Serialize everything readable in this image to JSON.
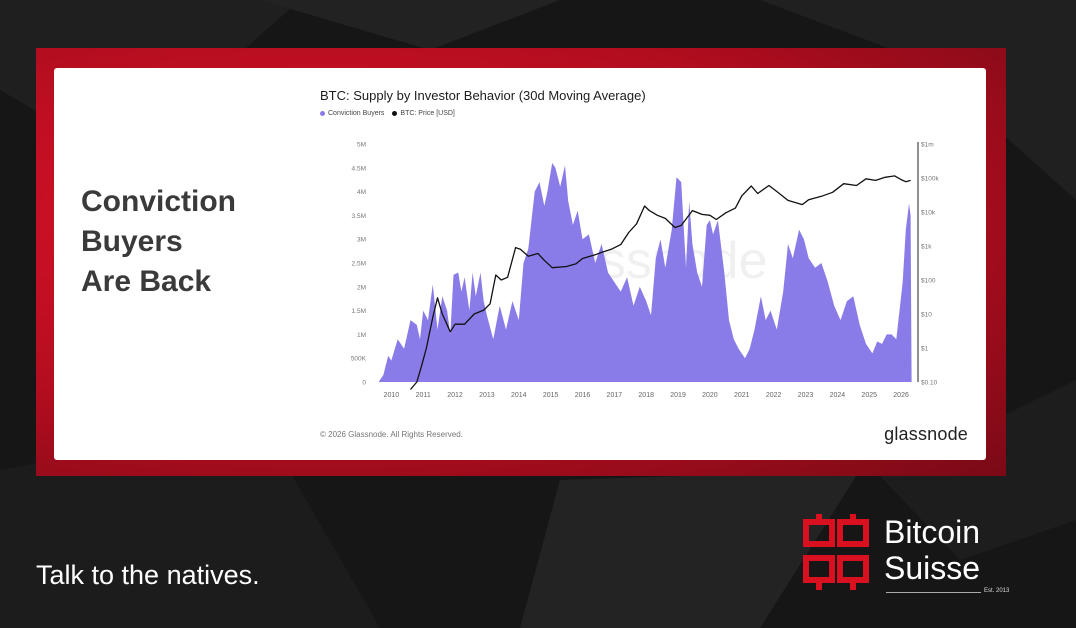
{
  "headline": [
    "Conviction",
    "Buyers",
    "Are Back"
  ],
  "tagline": "Talk to the natives.",
  "logo": {
    "line1": "Bitcoin",
    "line2": "Suisse",
    "est": "Est. 2013",
    "icon": "bitcoin-suisse-b-icon"
  },
  "colors": {
    "accent_red": "#d9101f",
    "supply_fill": "#8a7ce8",
    "price_line": "#111111"
  },
  "chart_data": {
    "type": "area",
    "title": "BTC: Supply by Investor Behavior (30d Moving Average)",
    "legend_placement": "top-left",
    "watermark": "glassnode",
    "copyright": "© 2026 Glassnode. All Rights Reserved.",
    "brand": "glassnode",
    "x_ticks": [
      "2010",
      "2011",
      "2012",
      "2013",
      "2014",
      "2015",
      "2016",
      "2017",
      "2018",
      "2019",
      "2020",
      "2021",
      "2022",
      "2023",
      "2024",
      "2025",
      "2026"
    ],
    "y_left_ticks": [
      "0",
      "500K",
      "1M",
      "1.5M",
      "2M",
      "2.5M",
      "3M",
      "3.5M",
      "4M",
      "4.5M",
      "5M"
    ],
    "y_right_ticks": [
      "$0.10",
      "$1",
      "$10",
      "$100",
      "$1k",
      "$10k",
      "$100k",
      "$1m"
    ],
    "y_left_range": [
      0,
      5000000
    ],
    "y_right_range_log10": [
      -1,
      6
    ],
    "series": [
      {
        "name": "Conviction Buyers",
        "kind": "area",
        "axis": "left",
        "points": [
          [
            2009.6,
            0
          ],
          [
            2009.75,
            150000
          ],
          [
            2009.9,
            550000
          ],
          [
            2010.0,
            450000
          ],
          [
            2010.2,
            900000
          ],
          [
            2010.4,
            700000
          ],
          [
            2010.6,
            1300000
          ],
          [
            2010.8,
            1200000
          ],
          [
            2010.9,
            900000
          ],
          [
            2011.0,
            1500000
          ],
          [
            2011.15,
            1300000
          ],
          [
            2011.3,
            2050000
          ],
          [
            2011.45,
            1100000
          ],
          [
            2011.6,
            1800000
          ],
          [
            2011.75,
            1500000
          ],
          [
            2011.85,
            1000000
          ],
          [
            2011.95,
            2250000
          ],
          [
            2012.1,
            2300000
          ],
          [
            2012.2,
            1900000
          ],
          [
            2012.3,
            2200000
          ],
          [
            2012.45,
            1500000
          ],
          [
            2012.55,
            2300000
          ],
          [
            2012.65,
            1800000
          ],
          [
            2012.8,
            2300000
          ],
          [
            2012.9,
            1700000
          ],
          [
            2013.0,
            1400000
          ],
          [
            2013.2,
            900000
          ],
          [
            2013.4,
            1600000
          ],
          [
            2013.6,
            1100000
          ],
          [
            2013.8,
            1700000
          ],
          [
            2014.0,
            1300000
          ],
          [
            2014.15,
            2500000
          ],
          [
            2014.3,
            2800000
          ],
          [
            2014.5,
            4000000
          ],
          [
            2014.65,
            4200000
          ],
          [
            2014.8,
            3700000
          ],
          [
            2014.9,
            4000000
          ],
          [
            2015.05,
            4600000
          ],
          [
            2015.15,
            4500000
          ],
          [
            2015.3,
            4100000
          ],
          [
            2015.45,
            4550000
          ],
          [
            2015.55,
            3800000
          ],
          [
            2015.7,
            3300000
          ],
          [
            2015.85,
            3600000
          ],
          [
            2016.0,
            3000000
          ],
          [
            2016.2,
            3100000
          ],
          [
            2016.4,
            2500000
          ],
          [
            2016.6,
            2900000
          ],
          [
            2016.8,
            2300000
          ],
          [
            2017.0,
            2100000
          ],
          [
            2017.2,
            1900000
          ],
          [
            2017.4,
            2200000
          ],
          [
            2017.6,
            1600000
          ],
          [
            2017.8,
            2000000
          ],
          [
            2018.0,
            1700000
          ],
          [
            2018.15,
            1400000
          ],
          [
            2018.3,
            2600000
          ],
          [
            2018.45,
            3000000
          ],
          [
            2018.6,
            2400000
          ],
          [
            2018.8,
            3200000
          ],
          [
            2018.95,
            4300000
          ],
          [
            2019.1,
            4200000
          ],
          [
            2019.25,
            2400000
          ],
          [
            2019.35,
            3800000
          ],
          [
            2019.45,
            2900000
          ],
          [
            2019.6,
            2300000
          ],
          [
            2019.75,
            2000000
          ],
          [
            2019.9,
            3300000
          ],
          [
            2020.0,
            3400000
          ],
          [
            2020.1,
            3100000
          ],
          [
            2020.25,
            3400000
          ],
          [
            2020.45,
            2300000
          ],
          [
            2020.6,
            1300000
          ],
          [
            2020.75,
            900000
          ],
          [
            2020.9,
            700000
          ],
          [
            2021.1,
            500000
          ],
          [
            2021.25,
            700000
          ],
          [
            2021.4,
            1100000
          ],
          [
            2021.6,
            1800000
          ],
          [
            2021.75,
            1300000
          ],
          [
            2021.9,
            1500000
          ],
          [
            2022.1,
            1100000
          ],
          [
            2022.3,
            1900000
          ],
          [
            2022.45,
            2900000
          ],
          [
            2022.6,
            2600000
          ],
          [
            2022.8,
            3200000
          ],
          [
            2022.95,
            3000000
          ],
          [
            2023.1,
            2600000
          ],
          [
            2023.3,
            2400000
          ],
          [
            2023.5,
            2500000
          ],
          [
            2023.7,
            2100000
          ],
          [
            2023.9,
            1600000
          ],
          [
            2024.1,
            1300000
          ],
          [
            2024.3,
            1700000
          ],
          [
            2024.5,
            1800000
          ],
          [
            2024.7,
            1200000
          ],
          [
            2024.9,
            800000
          ],
          [
            2025.1,
            600000
          ],
          [
            2025.25,
            850000
          ],
          [
            2025.4,
            800000
          ],
          [
            2025.55,
            1000000
          ],
          [
            2025.7,
            1000000
          ],
          [
            2025.85,
            900000
          ],
          [
            2025.95,
            1500000
          ],
          [
            2026.05,
            2100000
          ],
          [
            2026.15,
            3200000
          ],
          [
            2026.25,
            3750000
          ],
          [
            2026.3,
            3500000
          ],
          [
            2026.33,
            0
          ]
        ]
      },
      {
        "name": "BTC: Price [USD]",
        "kind": "line",
        "axis": "right",
        "points": [
          [
            2010.6,
            0.06
          ],
          [
            2010.8,
            0.1
          ],
          [
            2010.95,
            0.3
          ],
          [
            2011.1,
            1
          ],
          [
            2011.3,
            8
          ],
          [
            2011.45,
            30
          ],
          [
            2011.6,
            10
          ],
          [
            2011.85,
            3
          ],
          [
            2012.0,
            5
          ],
          [
            2012.3,
            5
          ],
          [
            2012.6,
            10
          ],
          [
            2012.9,
            13
          ],
          [
            2013.1,
            20
          ],
          [
            2013.28,
            140
          ],
          [
            2013.45,
            100
          ],
          [
            2013.65,
            120
          ],
          [
            2013.9,
            900
          ],
          [
            2014.05,
            800
          ],
          [
            2014.3,
            500
          ],
          [
            2014.6,
            600
          ],
          [
            2014.8,
            380
          ],
          [
            2015.05,
            230
          ],
          [
            2015.5,
            250
          ],
          [
            2015.8,
            300
          ],
          [
            2016.0,
            430
          ],
          [
            2016.4,
            550
          ],
          [
            2016.6,
            650
          ],
          [
            2016.9,
            800
          ],
          [
            2017.2,
            1100
          ],
          [
            2017.45,
            2500
          ],
          [
            2017.7,
            4500
          ],
          [
            2017.95,
            15000
          ],
          [
            2018.1,
            11000
          ],
          [
            2018.35,
            8000
          ],
          [
            2018.6,
            6500
          ],
          [
            2018.9,
            3500
          ],
          [
            2019.1,
            4000
          ],
          [
            2019.45,
            11000
          ],
          [
            2019.75,
            8500
          ],
          [
            2020.0,
            8000
          ],
          [
            2020.2,
            6000
          ],
          [
            2020.5,
            9500
          ],
          [
            2020.8,
            13000
          ],
          [
            2021.0,
            30000
          ],
          [
            2021.3,
            58000
          ],
          [
            2021.5,
            35000
          ],
          [
            2021.85,
            60000
          ],
          [
            2022.1,
            40000
          ],
          [
            2022.45,
            22000
          ],
          [
            2022.9,
            16500
          ],
          [
            2023.1,
            23000
          ],
          [
            2023.5,
            29000
          ],
          [
            2023.85,
            38000
          ],
          [
            2024.2,
            68000
          ],
          [
            2024.6,
            60000
          ],
          [
            2024.9,
            95000
          ],
          [
            2025.2,
            85000
          ],
          [
            2025.5,
            105000
          ],
          [
            2025.8,
            115000
          ],
          [
            2026.0,
            90000
          ],
          [
            2026.15,
            78000
          ],
          [
            2026.3,
            85000
          ]
        ]
      }
    ]
  }
}
